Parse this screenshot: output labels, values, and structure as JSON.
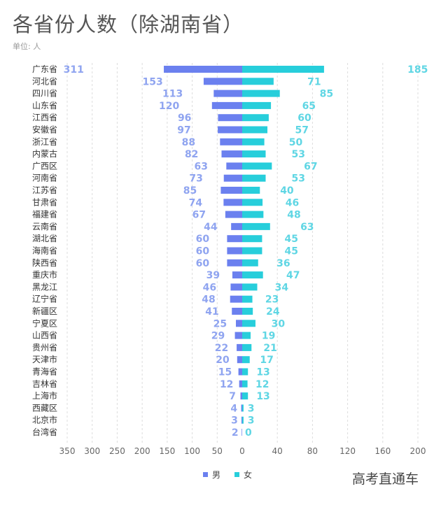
{
  "title": "各省份人数（除湖南省）",
  "unit_label": "单位: 人",
  "watermark": "高考直通车",
  "colors": {
    "male": "#6b80ef",
    "female": "#27cedb",
    "male_label": "#8fa4f0",
    "female_label": "#5fd6e4"
  },
  "chart_data": {
    "type": "bar",
    "orientation": "horizontal-butterfly",
    "title": "各省份人数（除湖南省）",
    "unit": "单位: 人",
    "categories": [
      "广东省",
      "河北省",
      "四川省",
      "山东省",
      "江西省",
      "安徽省",
      "浙江省",
      "内蒙古",
      "广西区",
      "河南省",
      "江苏省",
      "甘肃省",
      "福建省",
      "云南省",
      "湖北省",
      "海南省",
      "陕西省",
      "重庆市",
      "黑龙江",
      "辽宁省",
      "新疆区",
      "宁夏区",
      "山西省",
      "贵州省",
      "天津市",
      "青海省",
      "吉林省",
      "上海市",
      "西藏区",
      "北京市",
      "台湾省"
    ],
    "series": [
      {
        "name": "男",
        "side": "left",
        "values": [
          311,
          153,
          113,
          120,
          96,
          97,
          88,
          82,
          63,
          73,
          85,
          74,
          67,
          44,
          60,
          60,
          60,
          39,
          46,
          48,
          41,
          25,
          29,
          22,
          20,
          15,
          12,
          7,
          4,
          3,
          2
        ]
      },
      {
        "name": "女",
        "side": "right",
        "values": [
          185,
          71,
          85,
          65,
          60,
          57,
          50,
          53,
          67,
          53,
          40,
          46,
          48,
          63,
          45,
          45,
          36,
          47,
          34,
          23,
          24,
          30,
          19,
          21,
          17,
          13,
          12,
          13,
          3,
          3,
          0
        ]
      }
    ],
    "left_axis": {
      "ticks": [
        350,
        300,
        250,
        200,
        150,
        100,
        50,
        0
      ],
      "range": [
        0,
        350
      ]
    },
    "right_axis": {
      "ticks": [
        0,
        40,
        80,
        120,
        160,
        200
      ],
      "range": [
        0,
        200
      ]
    },
    "grid": true,
    "legend": {
      "position": "bottom-center",
      "entries": [
        "男",
        "女"
      ]
    }
  }
}
